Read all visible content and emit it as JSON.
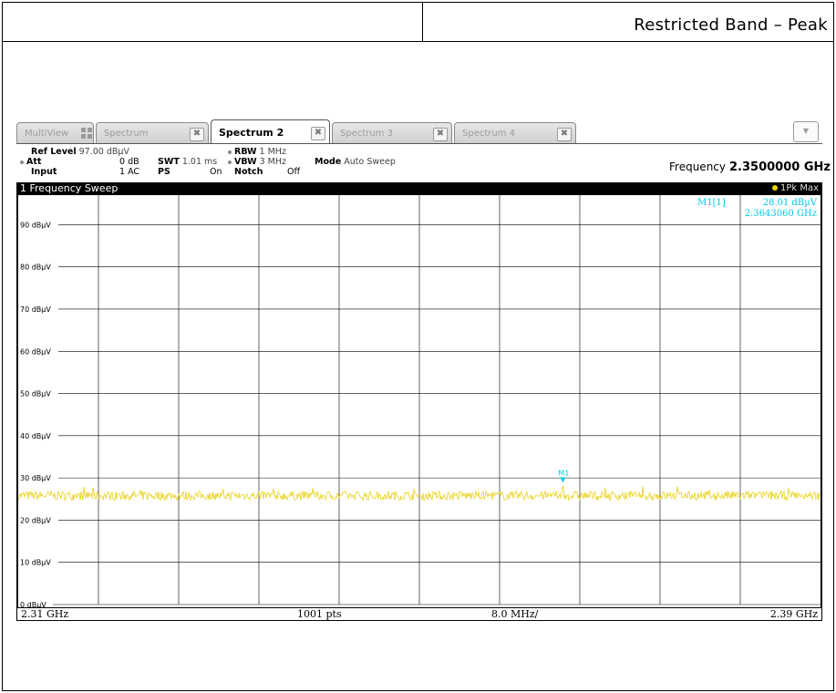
{
  "report": {
    "title": "Restricted Band – Peak"
  },
  "tabs": [
    {
      "label": "MultiView",
      "active": false
    },
    {
      "label": "Spectrum",
      "active": false
    },
    {
      "label": "Spectrum 2",
      "active": true
    },
    {
      "label": "Spectrum 3",
      "active": false
    },
    {
      "label": "Spectrum 4",
      "active": false
    }
  ],
  "tab_close_glyph": "✖",
  "tab_dropdown_glyph": "▼",
  "params": {
    "ref_level_label": "Ref Level",
    "ref_level_value": "97.00 dBµV",
    "att_label": "Att",
    "att_value": "0 dB",
    "input_label": "Input",
    "input_value": "1 AC",
    "swt_label": "SWT",
    "swt_value": "1.01 ms",
    "ps_label": "PS",
    "ps_value": "On",
    "rbw_label": "RBW",
    "rbw_value": "1 MHz",
    "vbw_label": "VBW",
    "vbw_value": "3 MHz",
    "notch_label": "Notch",
    "notch_value": "Off",
    "mode_label": "Mode",
    "mode_value": "Auto Sweep",
    "frequency_label": "Frequency",
    "frequency_value": "2.3500000 GHz"
  },
  "sweep": {
    "title": "1 Frequency Sweep",
    "trace_label": "1Pk Max"
  },
  "marker": {
    "name": "M1",
    "readout_label": "M1[1]",
    "readout_level": "28.01 dBµV",
    "readout_freq": "2.3643060 GHz"
  },
  "footer": {
    "start": "2.31 GHz",
    "points": "1001 pts",
    "span_per_div": "8.0 MHz/",
    "stop": "2.39 GHz"
  },
  "colors": {
    "trace": "#e8d21a",
    "marker": "#00c8e6",
    "grid": "#000000"
  },
  "chart_data": {
    "type": "line",
    "x_unit": "GHz",
    "y_unit": "dBµV",
    "xlim": [
      2.31,
      2.39
    ],
    "ylim": [
      0,
      97
    ],
    "y_ticks": [
      0,
      10,
      20,
      30,
      40,
      50,
      60,
      70,
      80,
      90
    ],
    "y_tick_labels": [
      "0 dBµV",
      "10 dBµV",
      "20 dBµV",
      "30 dBµV",
      "40 dBµV",
      "50 dBµV",
      "60 dBµV",
      "70 dBµV",
      "80 dBµV",
      "90 dBµV"
    ],
    "x_divisions": 10,
    "grid": true,
    "series": [
      {
        "name": "1Pk Max",
        "noise_floor_mean": 25.8,
        "noise_floor_spread": 1.1
      }
    ],
    "markers": [
      {
        "name": "M1",
        "x": 2.364306,
        "y": 28.01
      }
    ]
  }
}
